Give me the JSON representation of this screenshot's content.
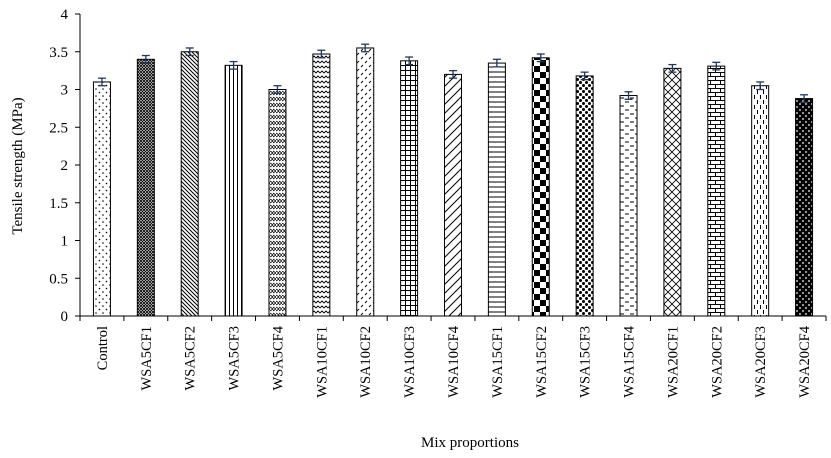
{
  "chart_data": {
    "type": "bar",
    "title": "",
    "xlabel": "Mix proportions",
    "ylabel": "Tensile strength (MPa)",
    "ylim": [
      0,
      4
    ],
    "ytick_step": 0.5,
    "yticks": [
      "0",
      "0.5",
      "1",
      "1.5",
      "2",
      "2.5",
      "3",
      "3.5",
      "4"
    ],
    "grid": false,
    "legend": "none",
    "error_bars": true,
    "categories": [
      "Control",
      "WSA5CF1",
      "WSA5CF2",
      "WSA5CF3",
      "WSA5CF4",
      "WSA10CF1",
      "WSA10CF2",
      "WSA10CF3",
      "WSA10CF4",
      "WSA15CF1",
      "WSA15CF2",
      "WSA15CF3",
      "WSA15CF4",
      "WSA20CF1",
      "WSA20CF2",
      "WSA20CF3",
      "WSA20CF4"
    ],
    "values": [
      3.1,
      3.4,
      3.5,
      3.32,
      3.0,
      3.47,
      3.55,
      3.38,
      3.2,
      3.35,
      3.42,
      3.18,
      2.92,
      3.28,
      3.31,
      3.05,
      2.88
    ],
    "errors": [
      0.05,
      0.05,
      0.05,
      0.05,
      0.05,
      0.05,
      0.05,
      0.05,
      0.05,
      0.05,
      0.05,
      0.05,
      0.05,
      0.05,
      0.05,
      0.05,
      0.05
    ],
    "patterns": [
      "dots-sparse",
      "fine-crosshatch",
      "diagonal-down",
      "vertical",
      "zigzag-vertical",
      "wave-horizontal",
      "dashes-diagonal",
      "grid",
      "diagonal-up-wide",
      "horizontal",
      "checkerboard",
      "spheres",
      "dashes-horizontal",
      "diamond-crosshatch",
      "brick",
      "dashes-vertical",
      "dark-spheres"
    ],
    "colors": {
      "bar_stroke": "#000000",
      "pattern_ink": "#000000",
      "error_bar": "#1f3864",
      "axis": "#000000"
    }
  }
}
